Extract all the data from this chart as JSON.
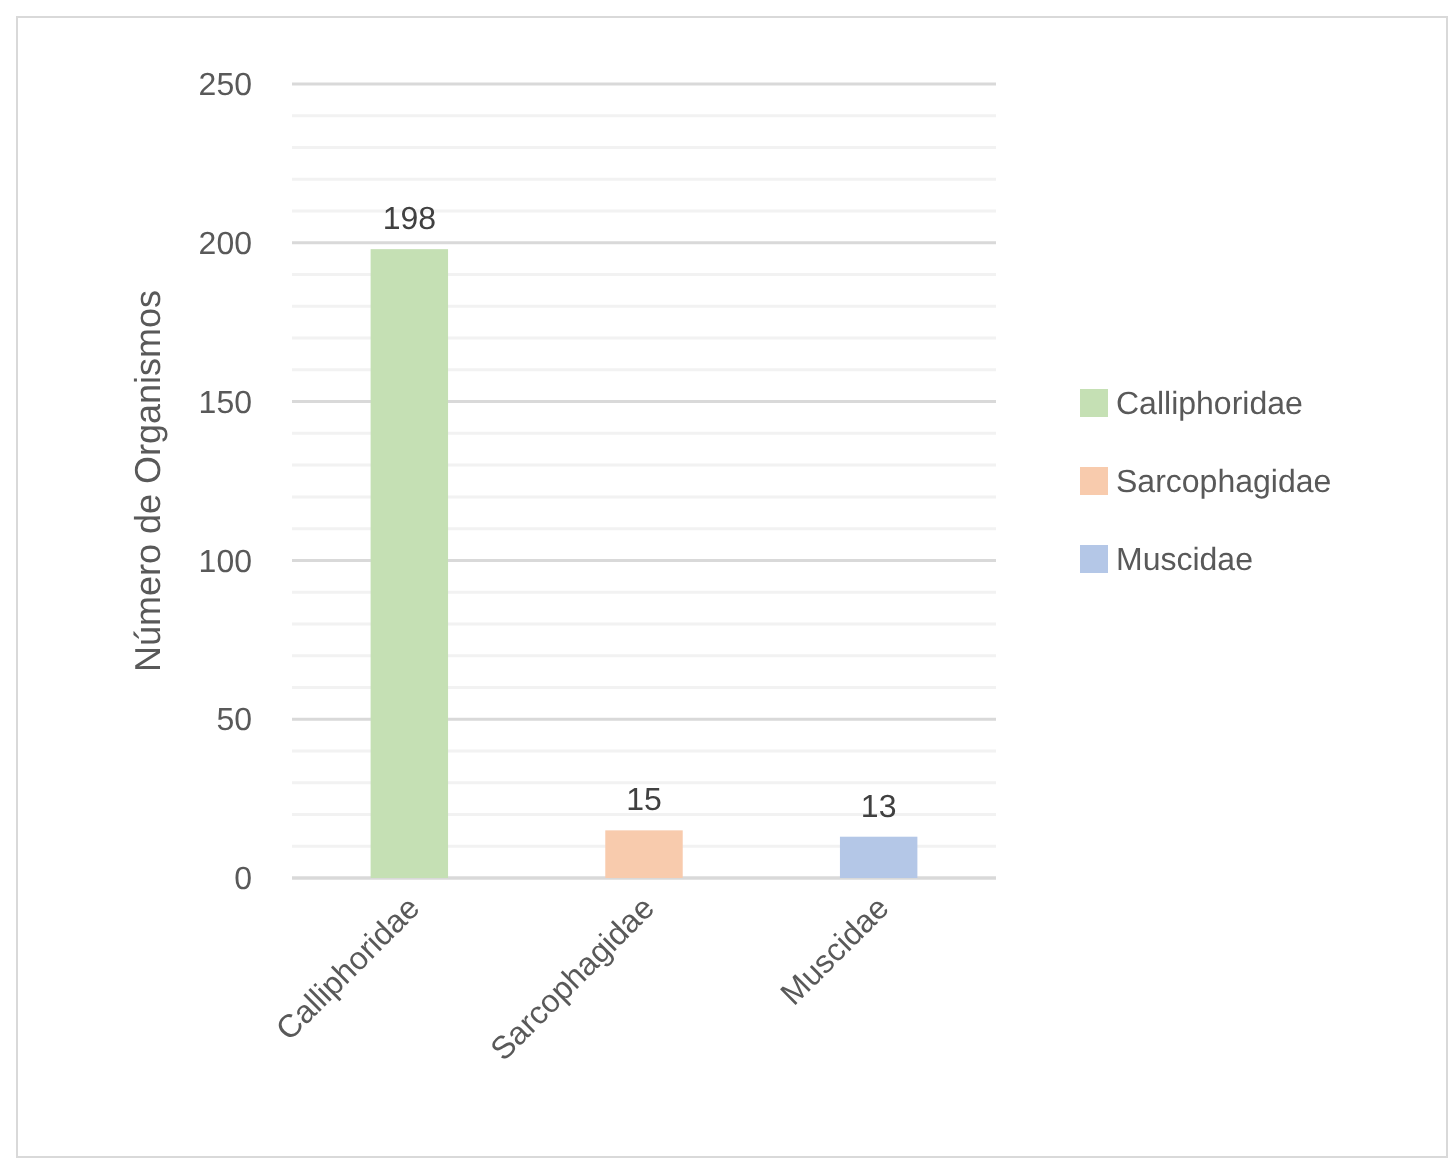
{
  "chart_data": {
    "type": "bar",
    "ylabel": "Número de Organismos",
    "categories": [
      "Calliphoridae",
      "Sarcophagidae",
      "Muscidae"
    ],
    "series": [
      {
        "name": "Calliphoridae",
        "color": "#c5e0b4",
        "values": [
          198,
          null,
          null
        ]
      },
      {
        "name": "Sarcophagidae",
        "color": "#f8cbad",
        "values": [
          null,
          15,
          null
        ]
      },
      {
        "name": "Muscidae",
        "color": "#b4c7e7",
        "values": [
          null,
          null,
          13
        ]
      }
    ],
    "ylim": [
      0,
      250
    ],
    "yticks": [
      0,
      {
        "value": 10,
        "label": null
      },
      {
        "value": 20,
        "label": null
      },
      {
        "value": 30,
        "label": null
      },
      {
        "value": 40,
        "label": null
      },
      50,
      {
        "value": 60,
        "label": null
      },
      {
        "value": 70,
        "label": null
      },
      {
        "value": 80,
        "label": null
      },
      {
        "value": 90,
        "label": null
      },
      100,
      {
        "value": 110,
        "label": null
      },
      {
        "value": 120,
        "label": null
      },
      {
        "value": 130,
        "label": null
      },
      {
        "value": 140,
        "label": null
      },
      150,
      {
        "value": 160,
        "label": null
      },
      {
        "value": 170,
        "label": null
      },
      {
        "value": 180,
        "label": null
      },
      {
        "value": 190,
        "label": null
      },
      200,
      {
        "value": 210,
        "label": null
      },
      {
        "value": 220,
        "label": null
      },
      {
        "value": 230,
        "label": null
      },
      {
        "value": 240,
        "label": null
      },
      250
    ],
    "grid": true,
    "data_labels": true,
    "legend": "right"
  }
}
